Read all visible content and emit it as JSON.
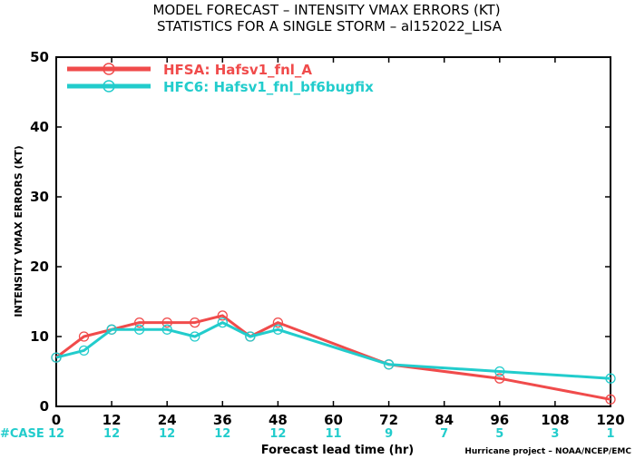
{
  "chart_data": {
    "type": "line",
    "title": "MODEL FORECAST – INTENSITY VMAX ERRORS (KT)",
    "subtitle": "STATISTICS FOR A SINGLE STORM – al152022_LISA",
    "xlabel": "Forecast lead time (hr)",
    "ylabel": "INTENSITY VMAX ERRORS (KT)",
    "xlim": [
      0,
      120
    ],
    "ylim": [
      0,
      50
    ],
    "x_ticks": [
      "0",
      "12",
      "24",
      "36",
      "48",
      "60",
      "72",
      "84",
      "96",
      "108",
      "120"
    ],
    "y_ticks": [
      "0",
      "10",
      "20",
      "30",
      "40",
      "50"
    ],
    "grid": false,
    "legend_position": "top-left",
    "series": [
      {
        "name": "HFSA: Hafsv1_fnl_A",
        "color": "#f04b4b",
        "x": [
          0,
          6,
          12,
          18,
          24,
          30,
          36,
          42,
          48,
          72,
          96,
          120
        ],
        "y": [
          7,
          10,
          11,
          12,
          12,
          12,
          13,
          10,
          12,
          6,
          4,
          1
        ]
      },
      {
        "name": "HFC6: Hafsv1_fnl_bf6bugfix",
        "color": "#22cccc",
        "x": [
          0,
          6,
          12,
          18,
          24,
          30,
          36,
          42,
          48,
          72,
          96,
          120
        ],
        "y": [
          7,
          8,
          11,
          11,
          11,
          10,
          12,
          10,
          11,
          6,
          5,
          4
        ]
      }
    ],
    "case_label": "#CASE",
    "case_counts": [
      {
        "x": 0,
        "n": "12"
      },
      {
        "x": 12,
        "n": "12"
      },
      {
        "x": 24,
        "n": "12"
      },
      {
        "x": 36,
        "n": "12"
      },
      {
        "x": 48,
        "n": "12"
      },
      {
        "x": 60,
        "n": "11"
      },
      {
        "x": 72,
        "n": "9"
      },
      {
        "x": 84,
        "n": "7"
      },
      {
        "x": 96,
        "n": "5"
      },
      {
        "x": 108,
        "n": "3"
      },
      {
        "x": 120,
        "n": "1"
      }
    ],
    "credit": "Hurricane project – NOAA/NCEP/EMC",
    "case_color": "#22cccc"
  }
}
